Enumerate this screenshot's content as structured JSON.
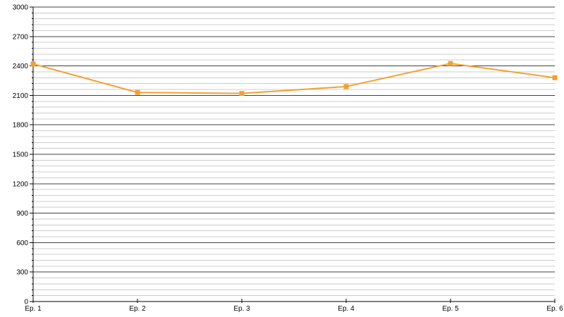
{
  "chart_data": {
    "type": "line",
    "title": "",
    "categories": [
      "Ep. 1",
      "Ep. 2",
      "Ep. 3",
      "Ep. 4",
      "Ep. 5",
      "Ep. 6"
    ],
    "series": [
      {
        "values": [
          2420,
          2130,
          2120,
          2190,
          2425,
          2280
        ],
        "color": "#F5A02E",
        "marker": "square",
        "marker_size": 7,
        "line_width": 2
      }
    ],
    "xlabel": "",
    "ylabel": "",
    "ylim": [
      0,
      3000
    ],
    "y_major_step": 300,
    "y_minor_step": 60,
    "y_tick_labels": [
      "0",
      "300",
      "600",
      "900",
      "1200",
      "1500",
      "1800",
      "2100",
      "2400",
      "2700",
      "3000"
    ],
    "grid": {
      "major": true,
      "minor": true,
      "major_color": "#404040",
      "minor_color": "#cccccc"
    },
    "axis_color": "#000000",
    "text_color": "#000000",
    "background": "#ffffff",
    "legend_position": "none"
  }
}
